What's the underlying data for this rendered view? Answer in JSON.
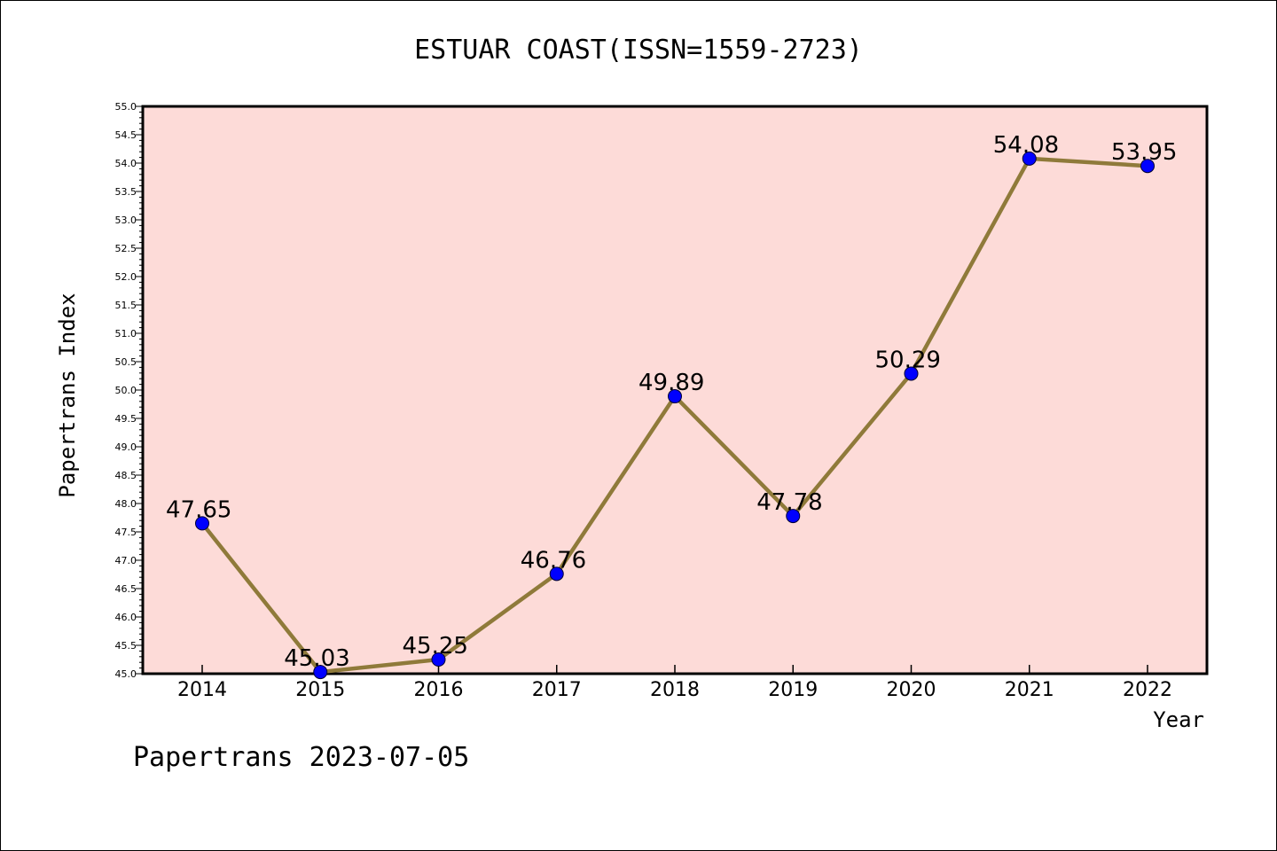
{
  "chart_data": {
    "type": "line",
    "title": "ESTUAR COAST(ISSN=1559-2723)",
    "xlabel": "Year",
    "ylabel": "Papertrans Index",
    "x": [
      "2014",
      "2015",
      "2016",
      "2017",
      "2018",
      "2019",
      "2020",
      "2021",
      "2022"
    ],
    "series": [
      {
        "values": [
          47.65,
          45.03,
          45.25,
          46.76,
          49.89,
          47.78,
          50.29,
          54.08,
          53.95
        ],
        "labels": [
          "47.65",
          "45.03",
          "45.25",
          "46.76",
          "49.89",
          "47.78",
          "50.29",
          "54.08",
          "53.95"
        ],
        "line_color": "#8f7a3a",
        "marker_color": "#0000ff"
      }
    ],
    "ylim": [
      45.0,
      55.0
    ],
    "yticks": [
      "45.0",
      "45.5",
      "46.0",
      "46.5",
      "47.0",
      "47.5",
      "48.0",
      "48.5",
      "49.0",
      "49.5",
      "50.0",
      "50.5",
      "51.0",
      "51.5",
      "52.0",
      "52.5",
      "53.0",
      "53.5",
      "54.0",
      "54.5",
      "55.0"
    ],
    "plot_background": "#fddbd8",
    "grid": false
  },
  "footer": "Papertrans 2023-07-05"
}
